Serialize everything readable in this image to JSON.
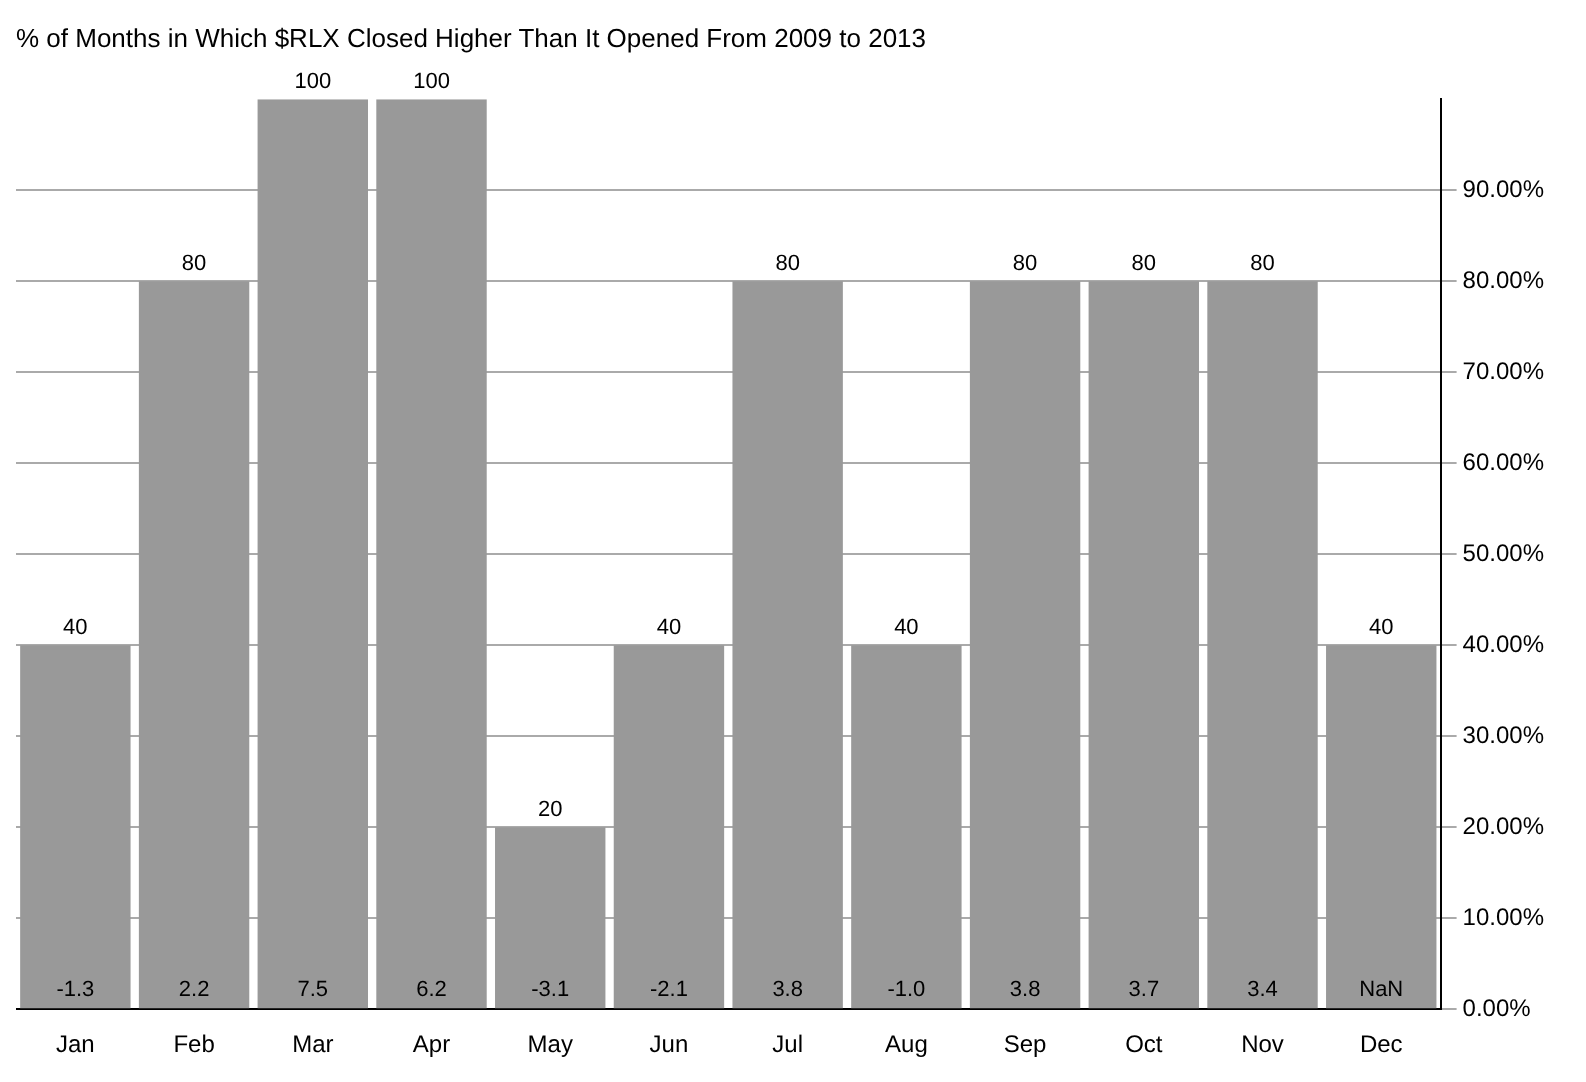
{
  "chart_data": {
    "type": "bar",
    "title": "% of Months in Which $RLX Closed Higher Than It Opened From 2009 to 2013",
    "categories": [
      "Jan",
      "Feb",
      "Mar",
      "Apr",
      "May",
      "Jun",
      "Jul",
      "Aug",
      "Sep",
      "Oct",
      "Nov",
      "Dec"
    ],
    "values": [
      40,
      80,
      100,
      100,
      20,
      40,
      80,
      40,
      80,
      80,
      80,
      40
    ],
    "color": "#999999",
    "data_labels": true,
    "grid": "y",
    "legend": false,
    "ylim": [
      0,
      100
    ],
    "yticks": [
      {
        "value": 0,
        "label": "0.00%"
      },
      {
        "value": 10,
        "label": "10.00%"
      },
      {
        "value": 20,
        "label": "20.00%"
      },
      {
        "value": 30,
        "label": "30.00%"
      },
      {
        "value": 40,
        "label": "40.00%"
      },
      {
        "value": 50,
        "label": "50.00%"
      },
      {
        "value": 60,
        "label": "60.00%"
      },
      {
        "value": 70,
        "label": "70.00%"
      },
      {
        "value": 80,
        "label": "80.00%"
      },
      {
        "value": 90,
        "label": "90.00%"
      }
    ],
    "annotations": [
      {
        "text": "-1.3",
        "x": "Jan",
        "y": 0
      },
      {
        "text": "2.2",
        "x": "Feb",
        "y": 0
      },
      {
        "text": "7.5",
        "x": "Mar",
        "y": 0
      },
      {
        "text": "6.2",
        "x": "Apr",
        "y": 0
      },
      {
        "text": "-3.1",
        "x": "May",
        "y": 0
      },
      {
        "text": "-2.1",
        "x": "Jun",
        "y": 0
      },
      {
        "text": "3.8",
        "x": "Jul",
        "y": 0
      },
      {
        "text": "-1.0",
        "x": "Aug",
        "y": 0
      },
      {
        "text": "3.8",
        "x": "Sep",
        "y": 0
      },
      {
        "text": "3.7",
        "x": "Oct",
        "y": 0
      },
      {
        "text": "3.4",
        "x": "Nov",
        "y": 0
      },
      {
        "text": "NaN",
        "x": "Dec",
        "y": 0
      }
    ]
  }
}
